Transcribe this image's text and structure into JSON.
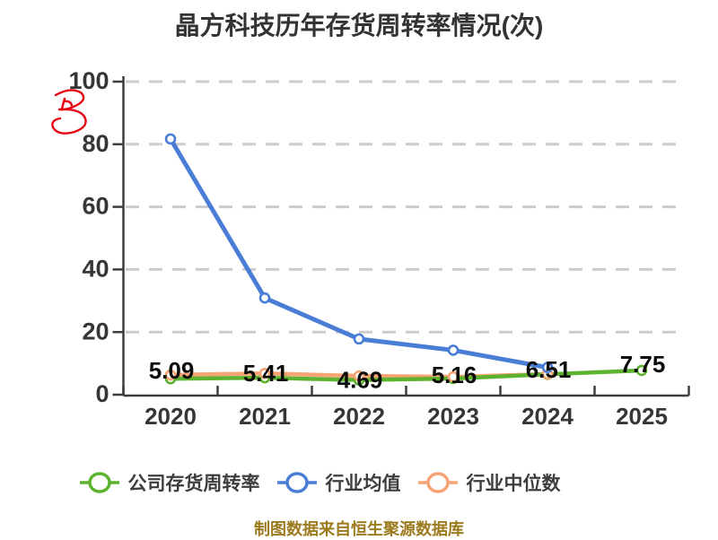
{
  "title": "晶方科技历年存货周转率情况(次)",
  "caption": "制图数据来自恒生聚源数据库",
  "watermark": {
    "icon": "red-scribble-icon",
    "color": "#e60012"
  },
  "colors": {
    "axis": "#3d3d3d",
    "grid": "#cccccc",
    "tick_label": "#363636",
    "data_label": "#0b0b0b",
    "title": "#333333",
    "caption": "#9c7b1f"
  },
  "chart_data": {
    "type": "line",
    "x": [
      "2020",
      "2021",
      "2022",
      "2023",
      "2024",
      "2025"
    ],
    "series": [
      {
        "name": "公司存货周转率",
        "key": "company",
        "color": "#5db32f",
        "values": [
          5.09,
          5.41,
          4.69,
          5.16,
          6.51,
          7.75
        ],
        "labeled": true
      },
      {
        "name": "行业均值",
        "key": "industry-avg",
        "color": "#4a7ed6",
        "values": [
          81.7,
          30.9,
          17.8,
          14.2,
          8.7,
          null
        ],
        "labeled": false
      },
      {
        "name": "行业中位数",
        "key": "industry-median",
        "color": "#f6a474",
        "values": [
          6.3,
          6.8,
          6.0,
          5.7,
          6.6,
          null
        ],
        "labeled": false
      }
    ],
    "ylim": [
      0,
      100
    ],
    "yticks": [
      0,
      20,
      40,
      60,
      80,
      100
    ],
    "grid": "dashed-horizontal",
    "legend_position": "bottom",
    "marker": "circle-white-fill"
  }
}
